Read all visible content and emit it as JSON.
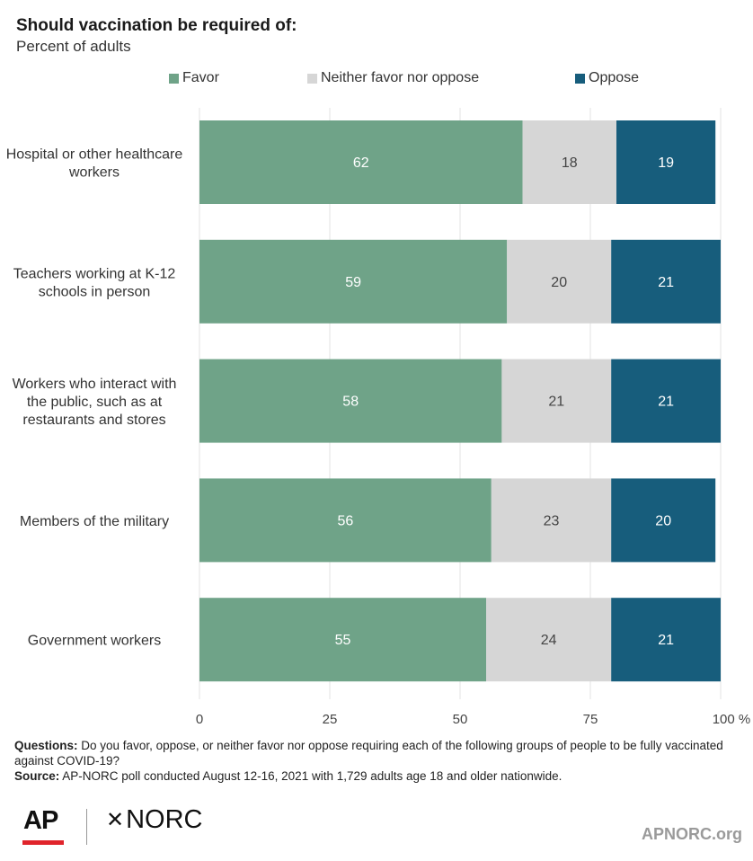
{
  "header": {
    "title": "Should vaccination be required of:",
    "subtitle": "Percent of adults"
  },
  "legend": [
    {
      "label": "Favor",
      "color": "#6fa388"
    },
    {
      "label": "Neither favor nor oppose",
      "color": "#d6d6d6"
    },
    {
      "label": "Oppose",
      "color": "#175d7c"
    }
  ],
  "chart_data": {
    "type": "bar",
    "orientation": "horizontal",
    "stacked": true,
    "categories": [
      [
        "Hospital or other healthcare",
        "workers"
      ],
      [
        "Teachers working at K-12",
        "schools in person"
      ],
      [
        "Workers who interact with",
        "the public, such as at",
        "restaurants and stores"
      ],
      [
        "Members of the military"
      ],
      [
        "Government workers"
      ]
    ],
    "series": [
      {
        "name": "Favor",
        "color": "#6fa388",
        "values": [
          62,
          59,
          58,
          56,
          55
        ]
      },
      {
        "name": "Neither favor nor oppose",
        "color": "#d6d6d6",
        "values": [
          18,
          20,
          21,
          23,
          24
        ]
      },
      {
        "name": "Oppose",
        "color": "#175d7c",
        "values": [
          19,
          21,
          21,
          20,
          21
        ]
      }
    ],
    "xlim": [
      0,
      100
    ],
    "xticks": [
      "0",
      "25",
      "50",
      "75",
      "100 %"
    ],
    "grid": true,
    "legend_position": "top"
  },
  "notes": {
    "questions_label": "Questions:",
    "questions_text": "Do you favor, oppose, or neither favor nor oppose requiring each of the following groups of people to be fully vaccinated against COVID-19?",
    "source_label": "Source:",
    "source_text": "AP-NORC poll conducted August 12-16, 2021 with 1,729 adults age 18 and older nationwide."
  },
  "footer": {
    "ap_logo": "AP",
    "norc_logo": "NORC",
    "norc_mark": "✕",
    "site": "APNORC.org"
  }
}
